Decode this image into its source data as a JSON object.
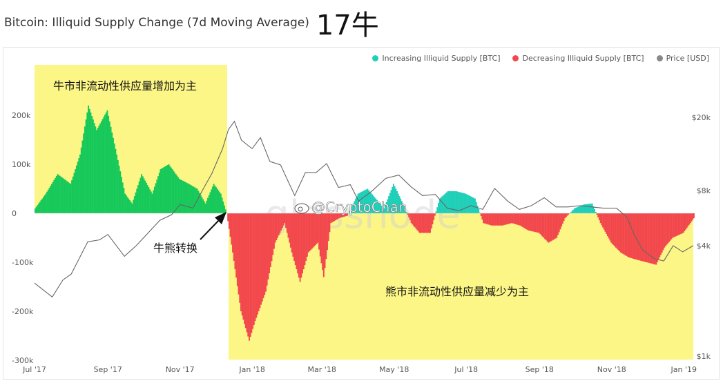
{
  "header": {
    "title": "Bitcoin: Illiquid Supply Change (7d Moving Average)",
    "note": "17牛"
  },
  "legend": [
    {
      "label": "Increasing Illiquid Supply [BTC]",
      "color": "#1fcfb8"
    },
    {
      "label": "Decreasing Illiquid Supply [BTC]",
      "color": "#f2484d"
    },
    {
      "label": "Price [USD]",
      "color": "#888888"
    }
  ],
  "annotations": {
    "bull_box_label": "牛市非流动性供应量增加为主",
    "bear_box_label": "熊市非流动性供应量减少为主",
    "turn_label": "牛熊转换",
    "watermark": "@CryptoChan",
    "source_watermark": "glassnode"
  },
  "colors": {
    "highlight_box": "#fcf686",
    "bull_bars": "#16c95a",
    "increase": "#1fcfb8",
    "decrease": "#f2484d",
    "price_line": "#666666"
  },
  "chart_data": {
    "type": "area",
    "title": "Bitcoin: Illiquid Supply Change (7d Moving Average)",
    "x_ticks": [
      "Jul '17",
      "Sep '17",
      "Nov '17",
      "Jan '18",
      "Mar '18",
      "May '18",
      "Jul '18",
      "Sep '18",
      "Nov '18",
      "Jan '19"
    ],
    "x_range": [
      "2017-07-01",
      "2019-01-09"
    ],
    "y_left": {
      "ticks": [
        "200k",
        "100k",
        "0",
        "-100k",
        "-200k",
        "-300k"
      ],
      "range": [
        -300000,
        250000
      ]
    },
    "y_right": {
      "ticks": [
        "$20k",
        "$8k",
        "$4k",
        "$1k"
      ],
      "scale": "log",
      "range": [
        1000,
        20000
      ]
    },
    "series": [
      {
        "name": "Illiquid Supply Change [BTC]",
        "x": [
          "2017-07-01",
          "2017-07-10",
          "2017-07-20",
          "2017-07-31",
          "2017-08-08",
          "2017-08-15",
          "2017-08-22",
          "2017-08-31",
          "2017-09-08",
          "2017-09-15",
          "2017-09-21",
          "2017-09-29",
          "2017-10-08",
          "2017-10-15",
          "2017-10-22",
          "2017-10-31",
          "2017-11-08",
          "2017-11-15",
          "2017-11-22",
          "2017-11-29",
          "2017-12-05",
          "2017-12-10",
          "2017-12-15",
          "2017-12-22",
          "2017-12-29",
          "2018-01-03",
          "2018-01-12",
          "2018-01-20",
          "2018-01-28",
          "2018-02-03",
          "2018-02-10",
          "2018-02-17",
          "2018-02-25",
          "2018-03-02",
          "2018-03-08",
          "2018-03-15",
          "2018-03-22",
          "2018-03-31",
          "2018-04-08",
          "2018-04-15",
          "2018-04-22",
          "2018-04-30",
          "2018-05-08",
          "2018-05-15",
          "2018-05-22",
          "2018-05-31",
          "2018-06-08",
          "2018-06-15",
          "2018-06-22",
          "2018-06-30",
          "2018-07-08",
          "2018-07-15",
          "2018-07-22",
          "2018-07-31",
          "2018-08-08",
          "2018-08-15",
          "2018-08-22",
          "2018-08-31",
          "2018-09-08",
          "2018-09-15",
          "2018-09-22",
          "2018-09-30",
          "2018-10-08",
          "2018-10-15",
          "2018-10-22",
          "2018-10-31",
          "2018-11-08",
          "2018-11-15",
          "2018-11-22",
          "2018-11-30",
          "2018-12-08",
          "2018-12-15",
          "2018-12-22",
          "2018-12-31",
          "2019-01-09"
        ],
        "y": [
          10000,
          40000,
          80000,
          60000,
          120000,
          220000,
          170000,
          210000,
          120000,
          40000,
          20000,
          80000,
          40000,
          90000,
          100000,
          70000,
          60000,
          50000,
          20000,
          60000,
          40000,
          0,
          -80000,
          -200000,
          -260000,
          -220000,
          -160000,
          -60000,
          -20000,
          -80000,
          -140000,
          -80000,
          -60000,
          -130000,
          -20000,
          -10000,
          -5000,
          40000,
          50000,
          30000,
          10000,
          60000,
          20000,
          -20000,
          -40000,
          -40000,
          30000,
          45000,
          45000,
          40000,
          30000,
          -20000,
          -25000,
          -25000,
          -20000,
          -25000,
          -35000,
          -40000,
          -60000,
          -50000,
          -10000,
          10000,
          18000,
          20000,
          -20000,
          -60000,
          -80000,
          -90000,
          -95000,
          -100000,
          -105000,
          -70000,
          -50000,
          -40000,
          -10000
        ]
      },
      {
        "name": "Price [USD]",
        "x": [
          "2017-07-01",
          "2017-07-16",
          "2017-07-25",
          "2017-08-01",
          "2017-08-15",
          "2017-08-25",
          "2017-09-01",
          "2017-09-15",
          "2017-09-25",
          "2017-10-01",
          "2017-10-15",
          "2017-10-25",
          "2017-11-01",
          "2017-11-12",
          "2017-11-20",
          "2017-11-28",
          "2017-12-07",
          "2017-12-12",
          "2017-12-17",
          "2017-12-23",
          "2018-01-01",
          "2018-01-08",
          "2018-01-16",
          "2018-01-25",
          "2018-02-06",
          "2018-02-15",
          "2018-02-24",
          "2018-03-05",
          "2018-03-15",
          "2018-03-25",
          "2018-04-01",
          "2018-04-12",
          "2018-04-24",
          "2018-05-05",
          "2018-05-15",
          "2018-05-25",
          "2018-06-05",
          "2018-06-15",
          "2018-06-25",
          "2018-07-05",
          "2018-07-15",
          "2018-07-25",
          "2018-08-05",
          "2018-08-15",
          "2018-08-25",
          "2018-09-05",
          "2018-09-15",
          "2018-09-25",
          "2018-10-05",
          "2018-10-15",
          "2018-10-25",
          "2018-11-05",
          "2018-11-14",
          "2018-11-20",
          "2018-11-27",
          "2018-12-07",
          "2018-12-15",
          "2018-12-23",
          "2018-12-31",
          "2019-01-09"
        ],
        "y": [
          2500,
          2100,
          2600,
          2800,
          4200,
          4300,
          4600,
          3500,
          4000,
          4400,
          5500,
          5900,
          6700,
          6400,
          8000,
          9900,
          13500,
          17200,
          19000,
          15000,
          13500,
          15500,
          11500,
          11000,
          7500,
          10000,
          10000,
          11200,
          8300,
          8600,
          7000,
          7900,
          9300,
          9700,
          8400,
          7500,
          7600,
          6400,
          6200,
          6600,
          6300,
          8200,
          7000,
          6300,
          6600,
          7300,
          6500,
          6500,
          6600,
          6500,
          6400,
          6400,
          5700,
          4600,
          3800,
          3400,
          3300,
          4000,
          3700,
          4000
        ]
      }
    ]
  }
}
